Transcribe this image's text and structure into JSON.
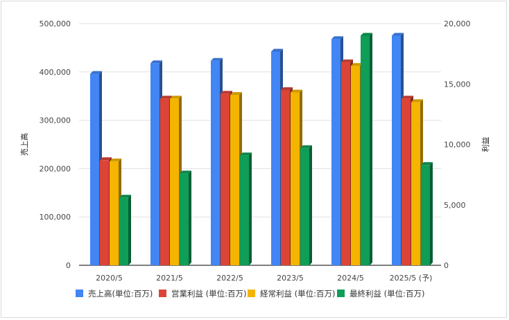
{
  "chart_data": {
    "type": "bar",
    "categories": [
      "2020/5",
      "2021/5",
      "2022/5",
      "2023/5",
      "2024/5",
      "2025/5 (予)"
    ],
    "ylabel_left": "売上高",
    "ylabel_right": "利益",
    "ylim_left": [
      0,
      500000
    ],
    "ylim_right": [
      0,
      20000
    ],
    "yticks_left": [
      "0",
      "100,000",
      "200,000",
      "300,000",
      "400,000",
      "500,000"
    ],
    "yticks_right": [
      "0",
      "5,000",
      "10,000",
      "15,000",
      "20,000"
    ],
    "grid": true,
    "legend_position": "bottom",
    "series": [
      {
        "name": "売上高(単位:百万)",
        "axis": "left",
        "color": "#4285f4",
        "values": [
          396000,
          418000,
          423000,
          442000,
          468000,
          475000
        ]
      },
      {
        "name": "営業利益 (単位:百万)",
        "axis": "right",
        "color": "#db4437",
        "values": [
          8700,
          13800,
          14200,
          14500,
          16800,
          13800
        ]
      },
      {
        "name": "経常利益 (単位:百万)",
        "axis": "right",
        "color": "#f4b400",
        "values": [
          8600,
          13800,
          14100,
          14300,
          16500,
          13500
        ]
      },
      {
        "name": "最終利益 (単位:百万)",
        "axis": "right",
        "color": "#0f9d58",
        "values": [
          5600,
          7600,
          9100,
          9700,
          19000,
          8300
        ]
      }
    ]
  }
}
